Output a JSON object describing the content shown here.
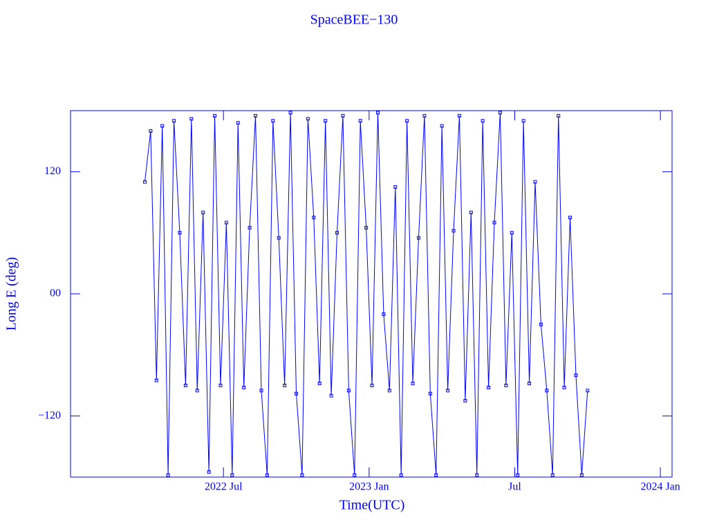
{
  "chart_data": {
    "type": "line",
    "title": "SpaceBEE−130",
    "xlabel": "Time(UTC)",
    "ylabel": "Long E (deg)",
    "color": "#0000ff",
    "x": [
      2022.23,
      2022.25,
      2022.27,
      2022.29,
      2022.31,
      2022.33,
      2022.35,
      2022.37,
      2022.39,
      2022.41,
      2022.43,
      2022.45,
      2022.47,
      2022.49,
      2022.51,
      2022.53,
      2022.55,
      2022.57,
      2022.59,
      2022.61,
      2022.63,
      2022.65,
      2022.67,
      2022.69,
      2022.71,
      2022.73,
      2022.75,
      2022.77,
      2022.79,
      2022.81,
      2022.83,
      2022.85,
      2022.87,
      2022.89,
      2022.91,
      2022.93,
      2022.95,
      2022.97,
      2022.99,
      2023.01,
      2023.03,
      2023.05,
      2023.07,
      2023.09,
      2023.11,
      2023.13,
      2023.15,
      2023.17,
      2023.19,
      2023.21,
      2023.23,
      2023.25,
      2023.27,
      2023.29,
      2023.31,
      2023.33,
      2023.35,
      2023.37,
      2023.39,
      2023.41,
      2023.43,
      2023.45,
      2023.47,
      2023.49,
      2023.51,
      2023.53,
      2023.55,
      2023.57,
      2023.59,
      2023.61,
      2023.63,
      2023.65,
      2023.67,
      2023.69,
      2023.71,
      2023.73,
      2023.75
    ],
    "values": [
      110,
      160,
      -85,
      165,
      -178,
      170,
      60,
      -90,
      172,
      -95,
      80,
      -175,
      175,
      -90,
      70,
      -178,
      168,
      -92,
      65,
      175,
      -95,
      -178,
      170,
      55,
      -90,
      178,
      -98,
      -178,
      172,
      75,
      -88,
      170,
      -100,
      60,
      175,
      -95,
      -178,
      170,
      65,
      -90,
      178,
      -20,
      -95,
      105,
      -178,
      170,
      -88,
      55,
      175,
      -98,
      -178,
      165,
      -95,
      62,
      175,
      -105,
      80,
      -178,
      170,
      -92,
      70,
      178,
      -90,
      60,
      -178,
      170,
      -88,
      110,
      -30,
      -95,
      -178,
      175,
      -92,
      75,
      -80,
      -178,
      -95
    ],
    "xlim": [
      2021.975,
      2024.04
    ],
    "ylim": [
      -180,
      180
    ],
    "xticks": [
      {
        "value": 2022.5,
        "label": "2022 Jul"
      },
      {
        "value": 2023.0,
        "label": "2023 Jan"
      },
      {
        "value": 2023.5,
        "label": "Jul"
      },
      {
        "value": 2024.0,
        "label": "2024 Jan"
      }
    ],
    "yticks": [
      {
        "value": -120,
        "label": "−120"
      },
      {
        "value": 0,
        "label": "00"
      },
      120
    ]
  }
}
